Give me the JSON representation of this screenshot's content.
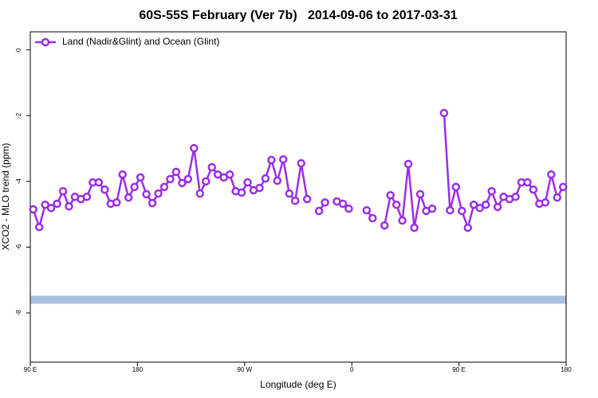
{
  "chart_data": {
    "type": "line",
    "title": "60S-55S February (Ver 7b)   2014-09-06 to 2017-03-31",
    "x_label": "Longitude (deg E)",
    "y_label": "XCO2 - MLO trend (ppm)",
    "xlim": [
      90,
      540
    ],
    "ylim": [
      -9.5,
      0.55
    ],
    "xticks": [
      {
        "value": 90,
        "label": "90 E"
      },
      180,
      {
        "value": 270,
        "label": "90 W"
      },
      {
        "value": 360,
        "label": "0"
      },
      {
        "value": 450,
        "label": "90 E"
      },
      {
        "value": 540,
        "label": "180"
      }
    ],
    "yticks": [
      0,
      -2,
      -4,
      -6,
      -8
    ],
    "legend": "top-left",
    "band": {
      "value": -7.6,
      "color": "#a7bfe0"
    },
    "x": [
      92.5,
      97.5,
      102.5,
      107.5,
      112.5,
      117.5,
      122.5,
      127.5,
      132.5,
      137.5,
      142.5,
      147.5,
      152.5,
      157.5,
      162.5,
      167.5,
      172.5,
      177.5,
      182.5,
      187.5,
      192.5,
      197.5,
      202.5,
      207.5,
      212.5,
      217.5,
      222.5,
      227.5,
      232.5,
      237.5,
      242.5,
      247.5,
      252.5,
      257.5,
      262.5,
      267.5,
      272.5,
      277.5,
      282.5,
      287.5,
      292.5,
      297.5,
      302.5,
      307.5,
      312.5,
      317.5,
      322.5,
      327.5,
      332.5,
      337.5,
      342.5,
      347.5,
      352.5,
      357.5,
      362.5,
      367.5,
      372.5,
      377.5,
      382.5,
      387.5,
      392.5,
      397.5,
      402.5,
      407.5,
      412.5,
      417.5,
      422.5,
      427.5,
      432.5,
      437.5,
      442.5,
      447.5,
      452.5,
      457.5,
      462.5,
      467.5,
      472.5,
      477.5,
      482.5,
      487.5,
      492.5,
      497.5,
      502.5,
      507.5,
      512.5,
      517.5,
      522.5,
      527.5,
      532.5,
      537.5
    ],
    "series": [
      {
        "name": "Land (Nadir&Glint) and Ocean (Glint)",
        "color": "#9b2ee6",
        "values": [
          -4.85,
          -5.39,
          -4.71,
          -4.81,
          -4.68,
          -4.3,
          -4.76,
          -4.47,
          -4.54,
          -4.47,
          -4.03,
          -4.03,
          -4.25,
          -4.68,
          -4.64,
          -3.79,
          -4.49,
          -4.17,
          -3.88,
          -4.39,
          -4.66,
          -4.37,
          -4.17,
          -3.93,
          -3.71,
          -4.05,
          -3.93,
          -2.99,
          -4.37,
          -4.0,
          -3.57,
          -3.79,
          -3.88,
          -3.79,
          -4.3,
          -4.34,
          -4.03,
          -4.27,
          -4.2,
          -3.91,
          -3.35,
          -3.98,
          -3.33,
          -4.37,
          -4.59,
          -3.45,
          -4.54,
          null,
          -4.9,
          -4.64,
          null,
          -4.61,
          -4.68,
          -4.83,
          null,
          null,
          -4.88,
          -5.12,
          null,
          -5.34,
          -4.42,
          -4.71,
          -5.19,
          -3.47,
          -5.41,
          -4.39,
          -4.9,
          -4.83,
          null,
          -1.92,
          -4.88,
          -4.17,
          -4.9,
          -5.41,
          -4.71,
          -4.81,
          -4.71,
          -4.3,
          -4.78,
          -4.47,
          -4.54,
          -4.47,
          -4.03,
          -4.03,
          -4.25,
          -4.68,
          -4.64,
          -3.79,
          -4.49,
          -4.17
        ]
      }
    ]
  }
}
